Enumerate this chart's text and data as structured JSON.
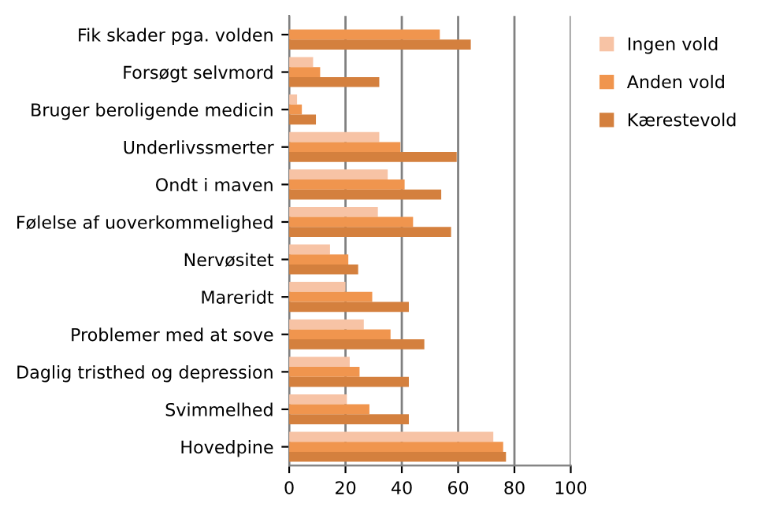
{
  "chart_data": {
    "type": "bar",
    "orientation": "horizontal",
    "categories": [
      "Fik skader pga. volden",
      "Forsøgt selvmord",
      "Bruger beroligende medicin",
      "Underlivssmerter",
      "Ondt i maven",
      "Følelse af uoverkommelighed",
      "Nervøsitet",
      "Mareridt",
      "Problemer med at sove",
      "Daglig tristhed og depression",
      "Svimmelhed",
      "Hovedpine"
    ],
    "series": [
      {
        "name": "Ingen vold",
        "color": "#f7c3a5",
        "values": [
          null,
          8.5,
          2.8,
          32,
          35,
          31.5,
          14.5,
          20,
          26.5,
          21.5,
          20.5,
          72.5
        ]
      },
      {
        "name": "Anden vold",
        "color": "#f0954e",
        "values": [
          53.5,
          11,
          4.5,
          39.5,
          41,
          44,
          21,
          29.5,
          36,
          25,
          28.5,
          76
        ]
      },
      {
        "name": "Kærestevold",
        "color": "#d4803e",
        "values": [
          64.5,
          32,
          9.5,
          59.5,
          54,
          57.5,
          24.5,
          42.5,
          48,
          42.5,
          42.5,
          77
        ]
      }
    ],
    "xlim": [
      0,
      100
    ],
    "xticks": [
      0,
      20,
      40,
      60,
      80,
      100
    ],
    "grid": "x",
    "legend": "right"
  }
}
